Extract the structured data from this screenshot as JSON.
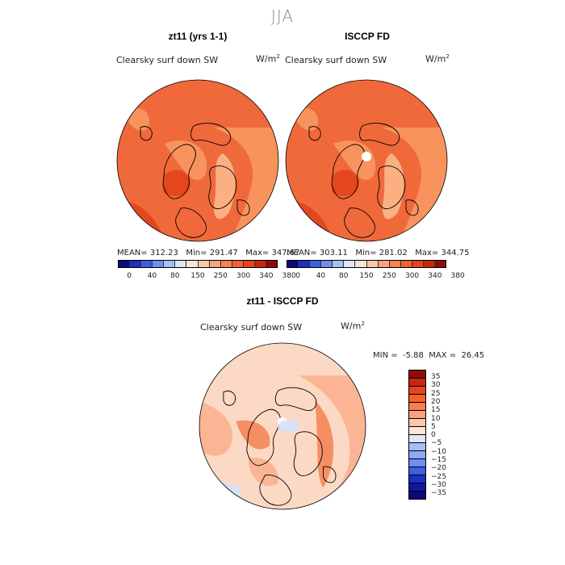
{
  "figure": {
    "season": "JJA"
  },
  "panels": [
    {
      "title": "zt11 (yrs 1-1)",
      "variable": "Clearsky surf down SW",
      "unit_base": "W/m",
      "unit_exp": "2",
      "stats": {
        "mean_label": "MEAN=",
        "mean": "312.23",
        "min_label": "Min=",
        "min": "291.47",
        "max_label": "Max=",
        "max": "347.67"
      }
    },
    {
      "title": "ISCCP FD",
      "variable": "Clearsky surf down SW",
      "unit_base": "W/m",
      "unit_exp": "2",
      "stats": {
        "mean_label": "MEAN=",
        "mean": "303.11",
        "min_label": "Min=",
        "min": "281.02",
        "max_label": "Max=",
        "max": "344.75"
      }
    }
  ],
  "diff_panel": {
    "title": "zt11 - ISCCP FD",
    "variable": "Clearsky surf down SW",
    "unit_base": "W/m",
    "unit_exp": "2",
    "stats": {
      "min_label": "MIN =",
      "min": "-5.88",
      "max_label": "MAX =",
      "max": "26.45"
    }
  },
  "abs_colorbar": {
    "colors": [
      "#0a0a7a",
      "#1c2fbf",
      "#3a5fe0",
      "#6d8ff0",
      "#a6bef7",
      "#dde6fb",
      "#fde5d6",
      "#fcc6a9",
      "#fba27a",
      "#f8804f",
      "#f3602e",
      "#e8431c",
      "#c8270f",
      "#8f0c06"
    ],
    "tick_labels": [
      "0",
      "40",
      "80",
      "150",
      "250",
      "300",
      "340",
      "380"
    ]
  },
  "diff_colorbar": {
    "colors": [
      "#8f0c06",
      "#c8270f",
      "#e8431c",
      "#f3602e",
      "#f8804f",
      "#fba27a",
      "#fcc6a9",
      "#fde5d6",
      "#dde6fb",
      "#a6bef7",
      "#8eaaf4",
      "#6d8ff0",
      "#3a5fe0",
      "#1c2fbf",
      "#0f1a9a",
      "#0a0a7a"
    ],
    "tick_labels": [
      "35",
      "30",
      "25",
      "20",
      "15",
      "10",
      "5",
      "0",
      "−5",
      "−10",
      "−15",
      "−20",
      "−25",
      "−30",
      "−35"
    ]
  },
  "map_colors": {
    "abs_base": "#f0693b",
    "abs_dark": "#e4471e",
    "abs_light": "#f8935e",
    "abs_lighter": "#fbb083",
    "diff_base": "#fcd9c4",
    "diff_mid": "#fbb594",
    "diff_strong": "#f58f63",
    "diff_neg": "#d4e2fa",
    "coast": "#000000"
  }
}
